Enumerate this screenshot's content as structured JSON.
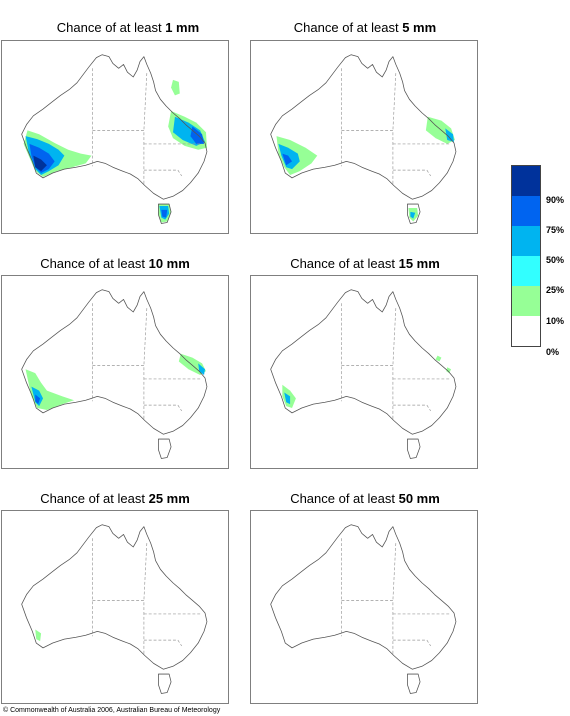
{
  "panels": [
    {
      "prefix": "Chance of at least",
      "amount": "1 mm",
      "regions": [
        "sw",
        "se_qld",
        "ne_coast",
        "tas"
      ]
    },
    {
      "prefix": "Chance of at least",
      "amount": "5 mm",
      "regions": [
        "sw5",
        "se_qld5",
        "tas5"
      ]
    },
    {
      "prefix": "Chance of at least",
      "amount": "10 mm",
      "regions": [
        "sw10",
        "se_qld10"
      ]
    },
    {
      "prefix": "Chance of at least",
      "amount": "15 mm",
      "regions": [
        "sw15",
        "se_qld15"
      ]
    },
    {
      "prefix": "Chance of at least",
      "amount": "25 mm",
      "regions": [
        "sw25"
      ]
    },
    {
      "prefix": "Chance of at least",
      "amount": "50 mm",
      "regions": []
    }
  ],
  "legend": {
    "colors": [
      "#00329b",
      "#0064f0",
      "#00b4f0",
      "#32ffff",
      "#96ff96",
      "#ffffff"
    ],
    "labels": [
      "90%",
      "75%",
      "50%",
      "25%",
      "10%",
      "0%"
    ]
  },
  "copyright": "© Commonwealth of Australia 2006, Australian Bureau of Meteorology"
}
